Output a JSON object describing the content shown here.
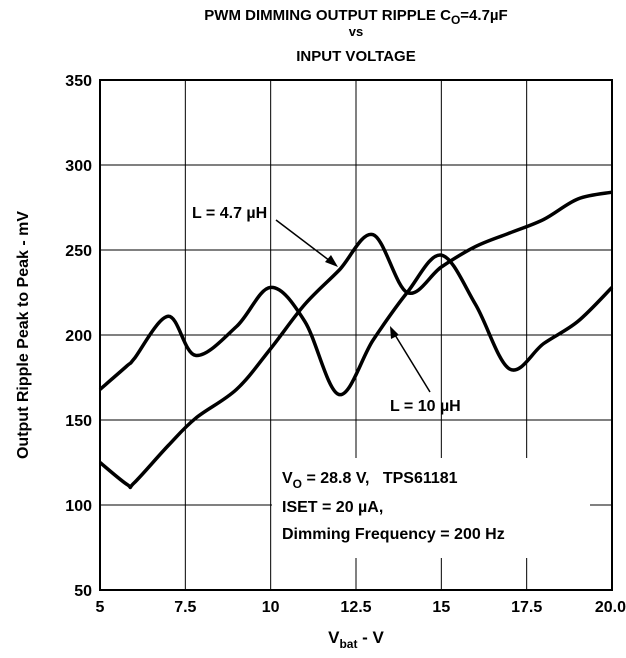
{
  "chart_data": {
    "type": "line",
    "title": [
      "PWM DIMMING OUTPUT RIPPLE C",
      "O",
      "=4.7µF"
    ],
    "subtitle": [
      "vs",
      "INPUT VOLTAGE"
    ],
    "x_label": [
      "V",
      "bat",
      " - V"
    ],
    "y_label": "Output Ripple Peak to Peak - mV",
    "x": [
      5,
      5.8,
      6,
      7,
      7.8,
      9,
      10,
      11,
      12,
      13,
      14,
      15,
      16,
      17,
      18,
      19,
      20
    ],
    "series": [
      {
        "name": "L = 10 µH",
        "color": "#000000",
        "values": [
          168,
          182,
          186,
          211,
          188,
          205,
          228,
          208,
          165,
          197,
          225,
          247,
          218,
          180,
          195,
          208,
          228
        ]
      },
      {
        "name": "L = 4.7 µH",
        "color": "#000000",
        "values": [
          125,
          112,
          113,
          135,
          151,
          168,
          192,
          218,
          238,
          259,
          225,
          240,
          252,
          260,
          268,
          280,
          284
        ]
      }
    ],
    "annotations": [
      [
        "V",
        "O",
        " = 28.8 V,   TPS61181"
      ],
      "ISET = 20 µA,",
      "Dimming Frequency = 200 Hz"
    ],
    "xlim": [
      5,
      20
    ],
    "ylim": [
      50,
      350
    ],
    "xticks": [
      5,
      7.5,
      10,
      12.5,
      15,
      17.5,
      {
        "value": 20,
        "label": "20.0"
      }
    ],
    "yticks": [
      50,
      100,
      150,
      200,
      250,
      300,
      350
    ],
    "grid": true
  }
}
